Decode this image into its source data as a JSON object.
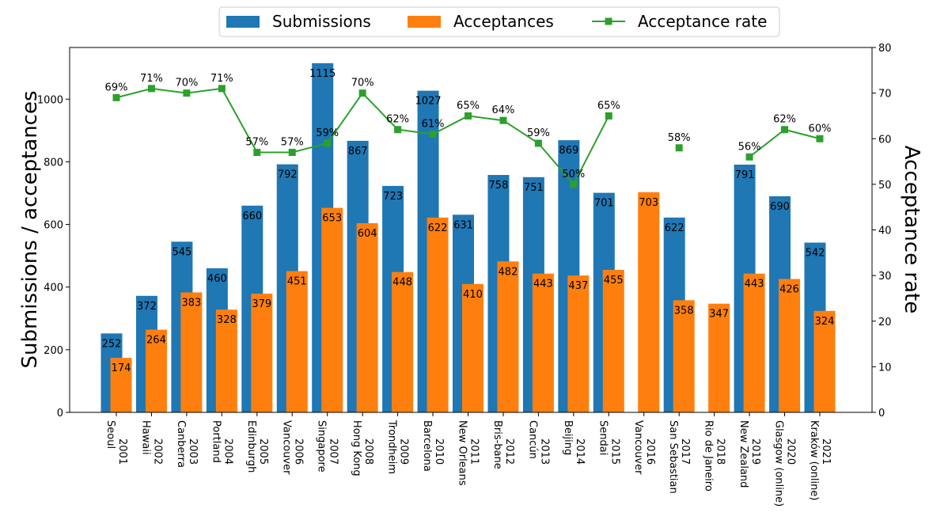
{
  "chart_data": {
    "type": "bar",
    "title": "",
    "ylabel": "Submissions / acceptances",
    "y2label": "Acceptance rate",
    "ylim": [
      0,
      1165
    ],
    "y2lim": [
      0,
      80
    ],
    "yticks": [
      0,
      200,
      400,
      600,
      800,
      1000
    ],
    "y2ticks": [
      0,
      10,
      20,
      30,
      40,
      50,
      60,
      70,
      80
    ],
    "legend_position": "top-center",
    "categories": [
      {
        "year": "2001",
        "place": "Seoul"
      },
      {
        "year": "2002",
        "place": "Hawaii"
      },
      {
        "year": "2003",
        "place": "Canberra"
      },
      {
        "year": "2004",
        "place": "Portland"
      },
      {
        "year": "2005",
        "place": "Edinburgh"
      },
      {
        "year": "2006",
        "place": "Vancouver"
      },
      {
        "year": "2007",
        "place": "Singapore"
      },
      {
        "year": "2008",
        "place": "Hong Kong"
      },
      {
        "year": "2009",
        "place": "Trondheim"
      },
      {
        "year": "2010",
        "place": "Barcelona"
      },
      {
        "year": "2011",
        "place": "New Orleans"
      },
      {
        "year": "2012",
        "place": "Bris-bane"
      },
      {
        "year": "2013",
        "place": "Cancún"
      },
      {
        "year": "2014",
        "place": "Beijing"
      },
      {
        "year": "2015",
        "place": "Sendai"
      },
      {
        "year": "2016",
        "place": "Vancouver"
      },
      {
        "year": "2017",
        "place": "San Sebastian"
      },
      {
        "year": "2018",
        "place": "Rio de Janeiro"
      },
      {
        "year": "2019",
        "place": "New Zealand"
      },
      {
        "year": "2020",
        "place": "Glasgow (online)"
      },
      {
        "year": "2021",
        "place": "Kraków (online)"
      }
    ],
    "series": [
      {
        "name": "Submissions",
        "color": "#1f77b4",
        "values": [
          252,
          372,
          545,
          460,
          660,
          792,
          1115,
          867,
          723,
          1027,
          631,
          758,
          751,
          869,
          701,
          null,
          622,
          null,
          791,
          690,
          542
        ]
      },
      {
        "name": "Acceptances",
        "color": "#ff7f0e",
        "values": [
          174,
          264,
          383,
          328,
          379,
          451,
          653,
          604,
          448,
          622,
          410,
          482,
          443,
          437,
          455,
          703,
          358,
          347,
          443,
          426,
          324
        ]
      },
      {
        "name": "Acceptance rate",
        "color": "#2ca02c",
        "axis": "right",
        "marker": "square",
        "values": [
          69,
          71,
          70,
          71,
          57,
          57,
          59,
          70,
          62,
          61,
          65,
          64,
          59,
          50,
          65,
          null,
          58,
          null,
          56,
          62,
          60
        ],
        "labels": [
          "69%",
          "71%",
          "70%",
          "71%",
          "57%",
          "57%",
          "59%",
          "70%",
          "62%",
          "61%",
          "65%",
          "64%",
          "59%",
          "50%",
          "65%",
          null,
          "58%",
          null,
          "56%",
          "62%",
          "60%"
        ]
      }
    ]
  }
}
